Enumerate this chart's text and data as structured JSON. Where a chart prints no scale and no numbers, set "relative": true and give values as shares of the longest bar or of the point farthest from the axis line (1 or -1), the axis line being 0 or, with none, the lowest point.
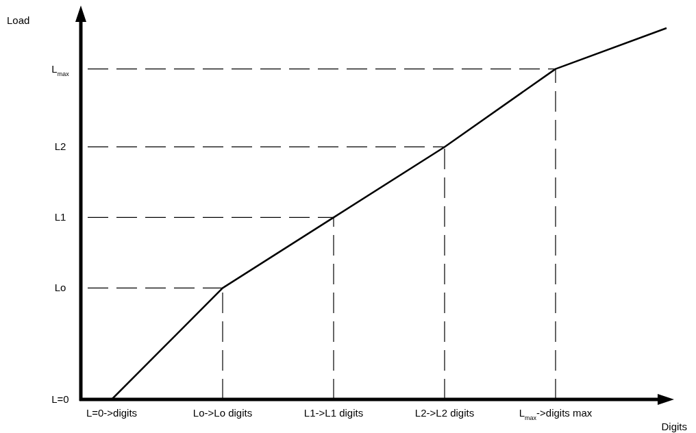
{
  "chart_data": {
    "type": "line",
    "relative": true,
    "xlabel": "Digits",
    "ylabel": "Load",
    "categories": [
      "L=0->digits",
      "Lo->Lo digits",
      "L1->L1 digits",
      "L2->L2 digits",
      "L$_{max}$->digits max",
      null
    ],
    "series": [
      {
        "color": "#000000",
        "values": [
          0,
          0.3,
          0.49,
          0.68,
          0.89,
          1
        ]
      }
    ],
    "marker": "none",
    "line_style": "solid",
    "annotations": [
      "L=0"
    ],
    "ref_lines": [
      {
        "axis": "y",
        "value": 0.3,
        "label": "Lo",
        "color": "#000000",
        "line_style": "dashed"
      },
      {
        "axis": "y",
        "value": 0.49,
        "label": "L1",
        "color": "#000000",
        "line_style": "dashed"
      },
      {
        "axis": "y",
        "value": 0.68,
        "label": "L2",
        "color": "#000000",
        "line_style": "dashed"
      },
      {
        "axis": "y",
        "value": 0.89,
        "label": "L$_{max}$",
        "color": "#000000",
        "line_style": "dashed"
      },
      {
        "axis": "x",
        "value": "Lo->Lo digits",
        "color": "#000000",
        "line_style": "dashed"
      },
      {
        "axis": "x",
        "value": "L1->L1 digits",
        "color": "#000000",
        "line_style": "dashed"
      },
      {
        "axis": "x",
        "value": "L2->L2 digits",
        "color": "#000000",
        "line_style": "dashed"
      },
      {
        "axis": "x",
        "value": "L$_{max}$->digits max",
        "color": "#000000",
        "line_style": "dashed"
      }
    ]
  }
}
